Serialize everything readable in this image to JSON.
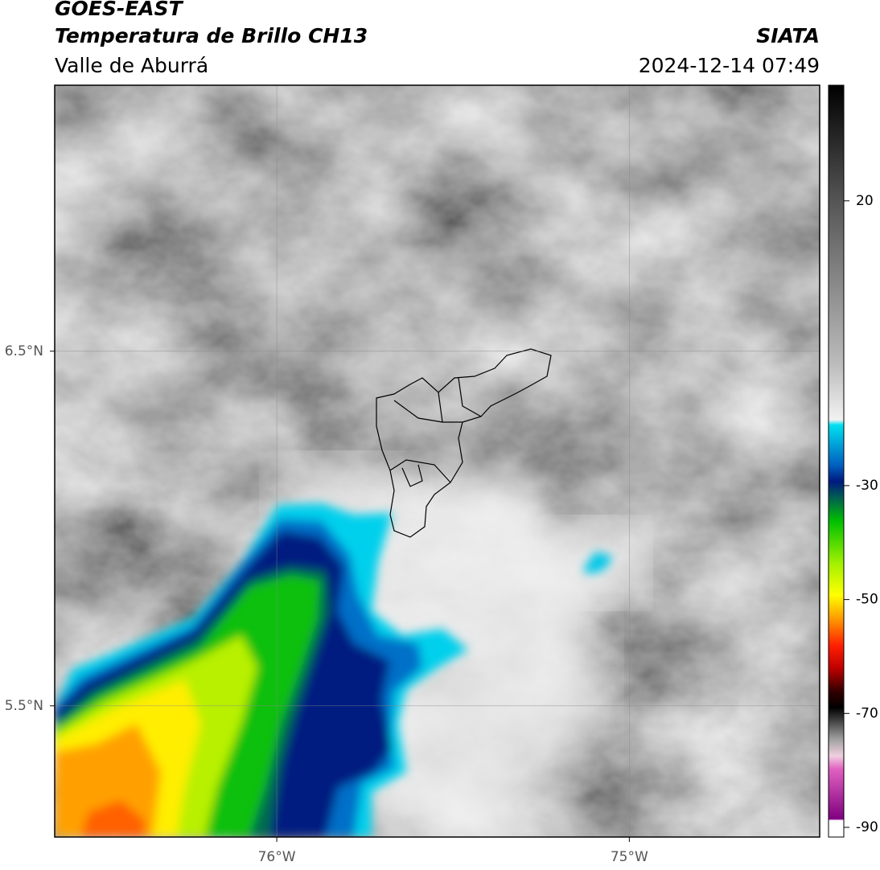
{
  "header": {
    "title": "GOES-EAST",
    "subtitle": "Temperatura de Brillo CH13",
    "region": "Valle de Aburrá",
    "source": "SIATA",
    "datetime": "2024-12-14 07:49"
  },
  "map": {
    "xlim": [
      -76.63,
      -74.46
    ],
    "ylim": [
      5.13,
      7.25
    ],
    "xticks": [
      {
        "value": -76,
        "label": "76°W"
      },
      {
        "value": -75,
        "label": "75°W"
      }
    ],
    "yticks": [
      {
        "value": 6.5,
        "label": "6.5°N"
      },
      {
        "value": 5.5,
        "label": "5.5°N"
      }
    ],
    "grid": true
  },
  "colorbar": {
    "vlim": [
      -91.7,
      40.3
    ],
    "ticks": [
      20,
      -30,
      -50,
      -70,
      -90
    ]
  }
}
